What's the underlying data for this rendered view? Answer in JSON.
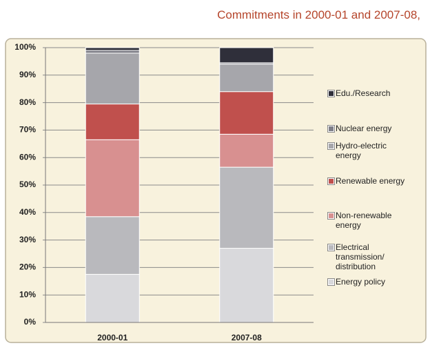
{
  "chart_data": {
    "type": "stacked_bar",
    "title": "Commitments in 2000-01 and 2007-08,",
    "categories": [
      "2000-01",
      "2007-08"
    ],
    "series": [
      {
        "name": "Energy policy",
        "color": "#d9d9dc",
        "values": [
          17.5,
          27
        ]
      },
      {
        "name": "Electrical transmission/ distribution",
        "color": "#b9b9bd",
        "values": [
          21,
          29.5
        ]
      },
      {
        "name": "Non-renewable energy",
        "color": "#d89090",
        "values": [
          28,
          12
        ]
      },
      {
        "name": "Renewable energy",
        "color": "#c0504d",
        "values": [
          13,
          15.5
        ]
      },
      {
        "name": "Hydro-electric energy",
        "color": "#a6a6ab",
        "values": [
          18.5,
          10
        ]
      },
      {
        "name": "Nuclear energy",
        "color": "#7f7f88",
        "values": [
          1,
          0.5
        ]
      },
      {
        "name": "Edu./Research",
        "color": "#2f2f3a",
        "values": [
          1,
          5.5
        ]
      }
    ],
    "ylim": [
      0,
      100
    ],
    "yticks": [
      {
        "value": 0,
        "label": "0%"
      },
      {
        "value": 10,
        "label": "10%"
      },
      {
        "value": 20,
        "label": "20%"
      },
      {
        "value": 30,
        "label": "30%"
      },
      {
        "value": 40,
        "label": "40%"
      },
      {
        "value": 50,
        "label": "50%"
      },
      {
        "value": 60,
        "label": "60%"
      },
      {
        "value": 70,
        "label": "70%"
      },
      {
        "value": 80,
        "label": "80%"
      },
      {
        "value": 90,
        "label": "90%"
      },
      {
        "value": 100,
        "label": "100%"
      }
    ],
    "grid": true
  }
}
